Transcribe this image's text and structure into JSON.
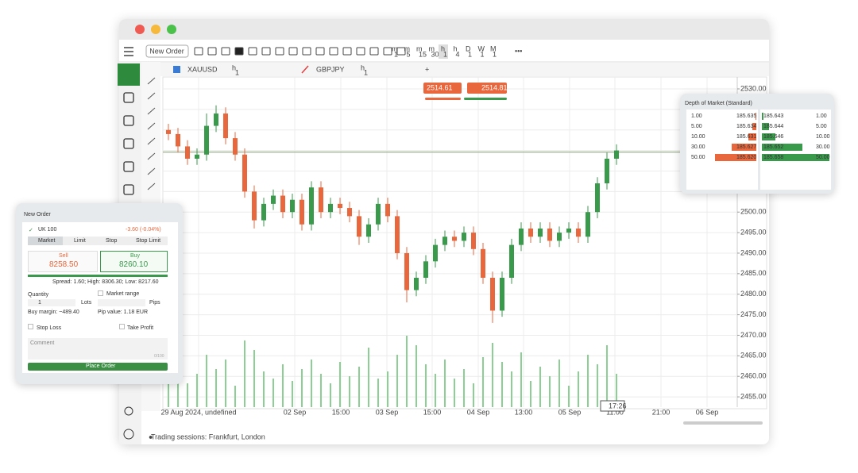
{
  "window": {
    "toolbar": {
      "new_order": "New Order",
      "timeframes": [
        [
          "m",
          "1"
        ],
        [
          "m",
          "5"
        ],
        [
          "m",
          "15"
        ],
        [
          "m",
          "30"
        ],
        [
          "h",
          "1"
        ],
        [
          "h",
          "4"
        ],
        [
          "D",
          "1"
        ],
        [
          "W",
          "1"
        ],
        [
          "M",
          "1"
        ]
      ]
    },
    "tabs": [
      {
        "symbol": "XAUUSD",
        "timeframe": [
          "h",
          "1"
        ]
      },
      {
        "symbol": "GBPJPY",
        "timeframe": [
          "h",
          "1"
        ]
      }
    ],
    "footer": "Trading sessions: Frankfurt, London"
  },
  "chart_data": {
    "type": "candlestick",
    "up_color": "#3a9a4c",
    "down_color": "#e8673c",
    "open": [
      2520,
      2519,
      2516,
      2513,
      2514,
      2521,
      2524,
      2518,
      2514,
      2505,
      2498,
      2502,
      2504,
      2500,
      2503,
      2497,
      2506,
      2500,
      2502,
      2501,
      2499,
      2494,
      2497,
      2502,
      2499,
      2490,
      2481,
      2484,
      2488,
      2492,
      2494,
      2493,
      2495,
      2491,
      2484,
      2476,
      2484,
      2492,
      2496,
      2494,
      2496,
      2493,
      2495,
      2496,
      2494,
      2500,
      2507,
      2513
    ],
    "high": [
      2521.5,
      2520.5,
      2517.5,
      2515.5,
      2524,
      2526,
      2525.5,
      2519.5,
      2515.5,
      2506.5,
      2503.5,
      2505.5,
      2505.5,
      2504.5,
      2504.5,
      2507.5,
      2507.5,
      2503.5,
      2503.5,
      2502.5,
      2500.5,
      2498.5,
      2503.5,
      2503.5,
      2500.5,
      2491.5,
      2485.5,
      2489.5,
      2493.5,
      2495.5,
      2495.5,
      2496.5,
      2496.5,
      2492.5,
      2485.5,
      2485.5,
      2493.5,
      2497.5,
      2497.5,
      2497.5,
      2497.5,
      2496.5,
      2497.5,
      2497.5,
      2501.5,
      2508.5,
      2514.5,
      2516.5
    ],
    "low": [
      2517.5,
      2514.5,
      2511.5,
      2511.5,
      2512.5,
      2519.5,
      2516.5,
      2512.5,
      2503.5,
      2496,
      2496.5,
      2500.5,
      2498.5,
      2498.5,
      2495.5,
      2495.5,
      2498.5,
      2498.5,
      2499.5,
      2497.5,
      2492,
      2492.5,
      2495.5,
      2497.5,
      2488.5,
      2478,
      2479.5,
      2482.5,
      2486.5,
      2490.5,
      2491.5,
      2491.5,
      2489.5,
      2482.5,
      2473,
      2474.5,
      2482.5,
      2490.5,
      2492.5,
      2492.5,
      2491.5,
      2491.5,
      2493.5,
      2492.5,
      2492.5,
      2498.5,
      2505.5,
      2511.5
    ],
    "close": [
      2519,
      2516,
      2513,
      2514,
      2521,
      2524,
      2518,
      2514,
      2505,
      2498,
      2502,
      2504,
      2500,
      2503,
      2497,
      2506,
      2500,
      2502,
      2501,
      2499,
      2494,
      2497,
      2502,
      2499,
      2490,
      2481,
      2484,
      2488,
      2492,
      2494,
      2493,
      2495,
      2491,
      2484,
      2476,
      2484,
      2492,
      2496,
      2494,
      2496,
      2493,
      2495,
      2496,
      2494,
      2500,
      2507,
      2513,
      2515
    ],
    "volume": [
      12,
      18,
      10,
      14,
      22,
      16,
      20,
      9,
      28,
      24,
      15,
      12,
      18,
      11,
      16,
      20,
      14,
      10,
      19,
      13,
      17,
      25,
      12,
      15,
      22,
      30,
      26,
      18,
      14,
      20,
      12,
      16,
      10,
      21,
      27,
      19,
      15,
      23,
      11,
      17,
      13,
      20,
      9,
      15,
      22,
      18,
      26,
      14
    ],
    "ylim": [
      2452.5,
      2532.9
    ],
    "yticks": [
      {
        "value": 2455,
        "label": "2455.00"
      },
      {
        "value": 2460,
        "label": "2460.00"
      },
      {
        "value": 2465,
        "label": "2465.00"
      },
      {
        "value": 2470,
        "label": "2470.00"
      },
      {
        "value": 2475,
        "label": "2475.00"
      },
      {
        "value": 2480,
        "label": "2480.00"
      },
      {
        "value": 2485,
        "label": "2485.00"
      },
      {
        "value": 2490,
        "label": "2490.00"
      },
      {
        "value": 2495,
        "label": "2495.00"
      },
      {
        "value": 2500,
        "label": "2500.00"
      },
      {
        "value": 2505,
        "label": "2505.00"
      },
      {
        "value": 2510,
        "label": "2510.00"
      },
      {
        "value": 2515,
        "label": "2515.00"
      },
      {
        "value": 2520,
        "label": "2520.00"
      },
      {
        "value": 2525,
        "label": "2525.00"
      },
      {
        "value": 2530,
        "label": "2530.00"
      }
    ],
    "xticks": [
      "29 Aug 2024, undefined",
      "02 Sep",
      "15:00",
      "03 Sep",
      "15:00",
      "04 Sep",
      "13:00",
      "05 Sep",
      "11:00",
      "21:00",
      "06 Sep"
    ],
    "sell_price": 2514.61,
    "buy_price": 2514.81,
    "crosshair_time": "17:26"
  },
  "depth_of_market": {
    "title": "Depth of Market (Standard)",
    "bids": [
      [
        "1.00",
        "185.635"
      ],
      [
        "5.00",
        "185.634"
      ],
      [
        "10.00",
        "185.631"
      ],
      [
        "30.00",
        "185.627"
      ],
      [
        "50.00",
        "185.620"
      ]
    ],
    "asks": [
      [
        "185.643",
        "1.00"
      ],
      [
        "185.644",
        "5.00"
      ],
      [
        "185.646",
        "10.00"
      ],
      [
        "185.652",
        "30.00"
      ],
      [
        "185.658",
        "50.00"
      ]
    ]
  },
  "new_order": {
    "title": "New Order",
    "symbol": "UK 100",
    "change": "-3.60 (-0.04%)",
    "tabs": [
      "Market",
      "Limit",
      "Stop",
      "Stop Limit"
    ],
    "sell": {
      "label": "Sell",
      "price": "8258.50"
    },
    "buy": {
      "label": "Buy",
      "price": "8260.10"
    },
    "stats": "Spread: 1.60; High: 8306.30; Low: 8217.60",
    "quantity": "Quantity",
    "market_range": "Market range",
    "qty_value": "1",
    "lots": "Lots",
    "pips": "Pips",
    "margin": "Buy margin: ~489.40",
    "pip_value": "Pip value: 1.18 EUR",
    "stop_loss": "Stop Loss",
    "take_profit": "Take Profit",
    "comment": "Comment",
    "counter": "0/100",
    "button": "Place Order"
  }
}
